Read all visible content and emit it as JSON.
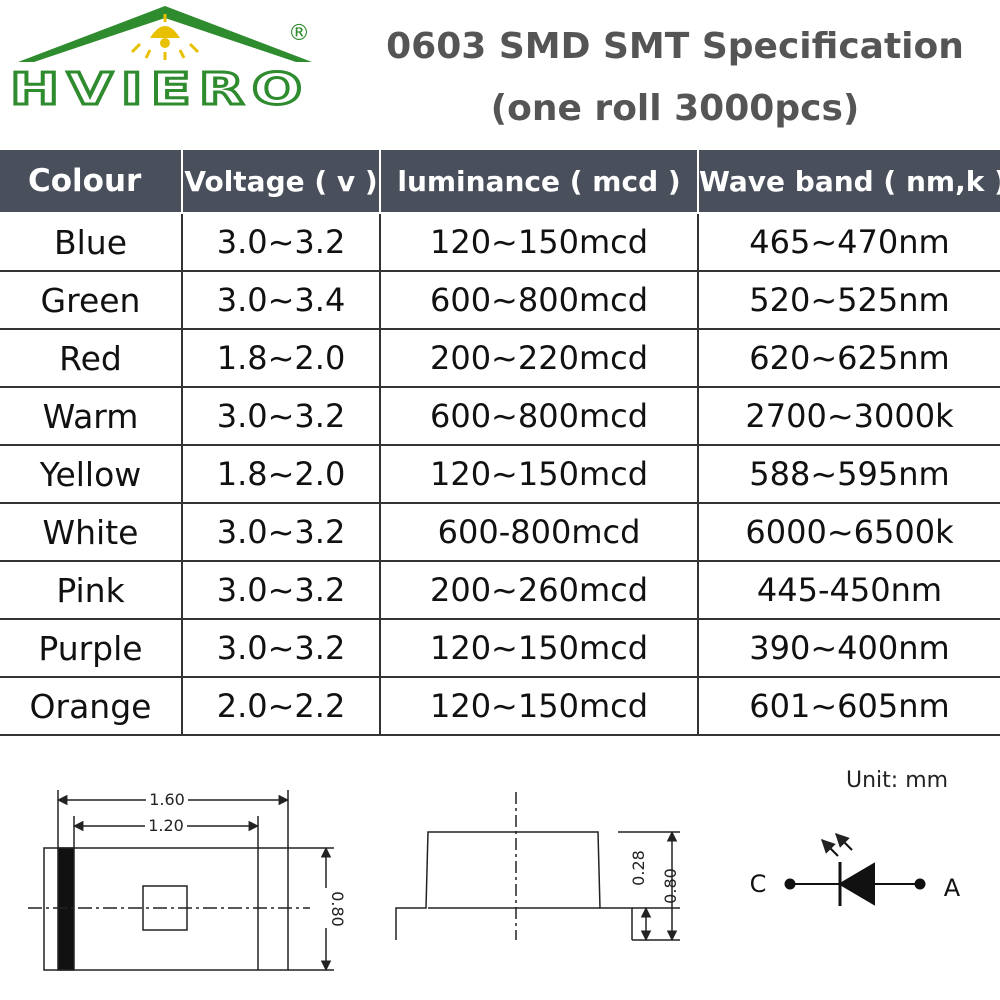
{
  "brand": {
    "name": "HVIERO",
    "registered": "®",
    "logo_color": "#2e8b2e",
    "accent_color": "#e8c000"
  },
  "title": {
    "line1": "0603 SMD SMT Specification",
    "line2": "(one roll 3000pcs)"
  },
  "table": {
    "header_bg": "#4a4f5c",
    "headers": [
      "Colour",
      "Voltage ( v )",
      "luminance ( mcd )",
      "Wave band ( nm,k )"
    ],
    "rows": [
      [
        "Blue",
        "3.0~3.2",
        "120~150mcd",
        "465~470nm"
      ],
      [
        "Green",
        "3.0~3.4",
        "600~800mcd",
        "520~525nm"
      ],
      [
        "Red",
        "1.8~2.0",
        "200~220mcd",
        "620~625nm"
      ],
      [
        "Warm",
        "3.0~3.2",
        "600~800mcd",
        "2700~3000k"
      ],
      [
        "Yellow",
        "1.8~2.0",
        "120~150mcd",
        "588~595nm"
      ],
      [
        "White",
        "3.0~3.2",
        "600-800mcd",
        "6000~6500k"
      ],
      [
        "Pink",
        "3.0~3.2",
        "200~260mcd",
        "445-450nm"
      ],
      [
        "Purple",
        "3.0~3.2",
        "120~150mcd",
        "390~400nm"
      ],
      [
        "Orange",
        "2.0~2.2",
        "120~150mcd",
        "601~605nm"
      ]
    ]
  },
  "diagram": {
    "unit": "Unit: mm",
    "top_view": {
      "length": "1.60",
      "inner_length": "1.20",
      "width": "0.80"
    },
    "side_view": {
      "lens_height": "0.28",
      "total_height": "0.80"
    },
    "symbol": {
      "cathode": "C",
      "anode": "A"
    }
  }
}
